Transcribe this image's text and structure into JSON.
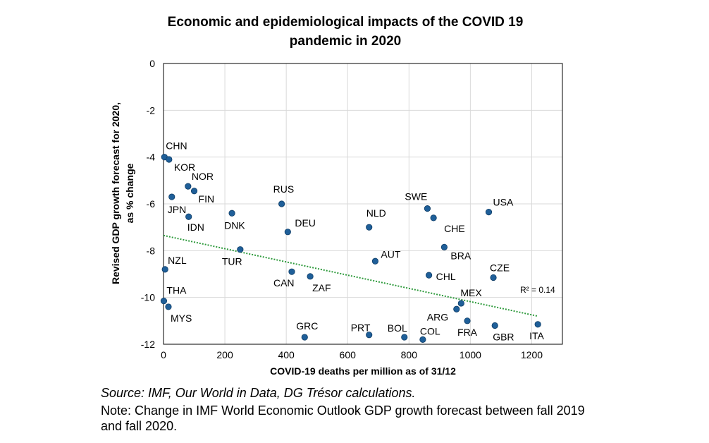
{
  "chart_data": {
    "type": "scatter",
    "title_lines": [
      "Economic and epidemiological impacts of the COVID 19",
      "pandemic in 2020"
    ],
    "xlabel": "COVID-19  deaths per million  as of 31/12",
    "ylabel_lines": [
      "Revised GDP growth forecast for 2020,",
      "as % change"
    ],
    "xlim": [
      0,
      1300
    ],
    "ylim": [
      -12,
      0
    ],
    "xticks": [
      0,
      200,
      400,
      600,
      800,
      1000,
      1200
    ],
    "yticks": [
      0,
      -2,
      -4,
      -6,
      -8,
      -10,
      -12
    ],
    "xtick_labels": [
      "0",
      "200",
      "400",
      "600",
      "800",
      "1000",
      "1200"
    ],
    "ytick_labels": [
      "0",
      "-2",
      "-4",
      "-6",
      "-8",
      "-10",
      "-12"
    ],
    "grid": true,
    "marker_color": "#1f5f99",
    "trend_color": "#2e9a3c",
    "trendline": {
      "x": [
        0,
        1220
      ],
      "y": [
        -7.35,
        -10.8
      ],
      "r2_label": "R² = 0.14"
    },
    "points": [
      {
        "label": "CHN",
        "x": 3,
        "y": -4.0
      },
      {
        "label": "KOR",
        "x": 18,
        "y": -4.1
      },
      {
        "label": "NOR",
        "x": 80,
        "y": -5.25
      },
      {
        "label": "FIN",
        "x": 100,
        "y": -5.45
      },
      {
        "label": "JPN",
        "x": 27,
        "y": -5.7
      },
      {
        "label": "IDN",
        "x": 82,
        "y": -6.55
      },
      {
        "label": "DNK",
        "x": 223,
        "y": -6.4
      },
      {
        "label": "RUS",
        "x": 385,
        "y": -6.0
      },
      {
        "label": "DEU",
        "x": 405,
        "y": -7.2
      },
      {
        "label": "NZL",
        "x": 5,
        "y": -8.8
      },
      {
        "label": "TUR",
        "x": 250,
        "y": -7.95
      },
      {
        "label": "CAN",
        "x": 418,
        "y": -8.9
      },
      {
        "label": "ZAF",
        "x": 478,
        "y": -9.1
      },
      {
        "label": "THA",
        "x": 1,
        "y": -10.15
      },
      {
        "label": "MYS",
        "x": 16,
        "y": -10.4
      },
      {
        "label": "GRC",
        "x": 460,
        "y": -11.7
      },
      {
        "label": "NLD",
        "x": 670,
        "y": -7.0
      },
      {
        "label": "AUT",
        "x": 690,
        "y": -8.45
      },
      {
        "label": "PRT",
        "x": 670,
        "y": -11.6
      },
      {
        "label": "BOL",
        "x": 785,
        "y": -11.7
      },
      {
        "label": "COL",
        "x": 845,
        "y": -11.8
      },
      {
        "label": "SWE",
        "x": 860,
        "y": -6.2
      },
      {
        "label": "CHE",
        "x": 880,
        "y": -6.6
      },
      {
        "label": "BRA",
        "x": 915,
        "y": -7.85
      },
      {
        "label": "CHL",
        "x": 865,
        "y": -9.05
      },
      {
        "label": "ARG",
        "x": 955,
        "y": -10.5
      },
      {
        "label": "MEX",
        "x": 970,
        "y": -10.25
      },
      {
        "label": "FRA",
        "x": 990,
        "y": -11.0
      },
      {
        "label": "USA",
        "x": 1060,
        "y": -6.35
      },
      {
        "label": "CZE",
        "x": 1075,
        "y": -9.15
      },
      {
        "label": "GBR",
        "x": 1080,
        "y": -11.2
      },
      {
        "label": "ITA",
        "x": 1220,
        "y": -11.15
      }
    ]
  },
  "footer": {
    "source": "Source: IMF, Our World in Data, DG Trésor calculations.",
    "note": "Note: Change in IMF World Economic Outlook GDP growth forecast between fall 2019 and fall 2020."
  }
}
